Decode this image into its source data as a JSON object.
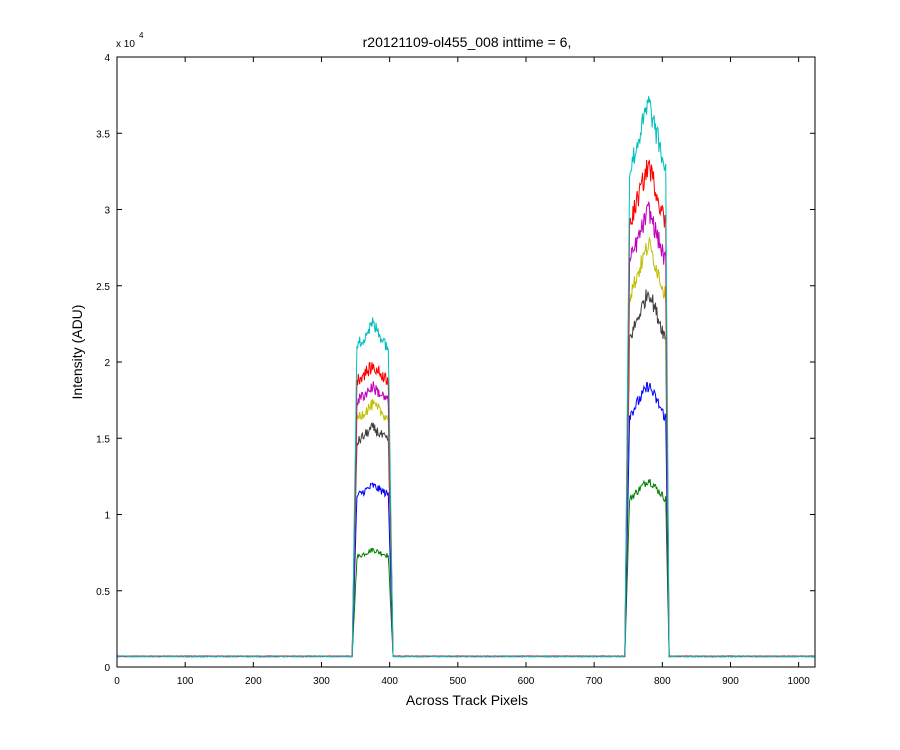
{
  "chart_data": {
    "type": "line",
    "title": "r20121109-ol455_008 inttime = 6,",
    "xlabel": "Across Track Pixels",
    "ylabel": "Intensity (ADU)",
    "y_exponent": {
      "base": "x 10",
      "power": "4"
    },
    "xlim": [
      0,
      1024
    ],
    "ylim": [
      0,
      40000
    ],
    "xticks": [
      0,
      100,
      200,
      300,
      400,
      500,
      600,
      700,
      800,
      900,
      1000
    ],
    "yticks": [
      0,
      5000,
      10000,
      15000,
      20000,
      25000,
      30000,
      35000,
      40000
    ],
    "xtick_labels": [
      "0",
      "100",
      "200",
      "300",
      "400",
      "500",
      "600",
      "700",
      "800",
      "900",
      "1000"
    ],
    "ytick_labels": [
      "0",
      "0.5",
      "1",
      "1.5",
      "2",
      "2.5",
      "3",
      "3.5",
      "4"
    ],
    "grid": false,
    "legend": "none",
    "baseline": 700,
    "peaks": [
      {
        "x_start": 345,
        "x_end": 405
      },
      {
        "x_start": 745,
        "x_end": 810
      }
    ],
    "series": [
      {
        "color": "#008000",
        "values": [
          {
            "x": 0,
            "y": 700
          },
          {
            "x": 345,
            "y": 700
          },
          {
            "x": 352,
            "y": 7200
          },
          {
            "x": 375,
            "y": 7700
          },
          {
            "x": 398,
            "y": 7300
          },
          {
            "x": 405,
            "y": 700
          },
          {
            "x": 745,
            "y": 700
          },
          {
            "x": 752,
            "y": 11000
          },
          {
            "x": 780,
            "y": 12300
          },
          {
            "x": 805,
            "y": 11000
          },
          {
            "x": 810,
            "y": 700
          },
          {
            "x": 1024,
            "y": 700
          }
        ]
      },
      {
        "color": "#0000ff",
        "values": [
          {
            "x": 0,
            "y": 700
          },
          {
            "x": 345,
            "y": 700
          },
          {
            "x": 352,
            "y": 11200
          },
          {
            "x": 375,
            "y": 11900
          },
          {
            "x": 398,
            "y": 11300
          },
          {
            "x": 405,
            "y": 700
          },
          {
            "x": 745,
            "y": 700
          },
          {
            "x": 752,
            "y": 16500
          },
          {
            "x": 780,
            "y": 18500
          },
          {
            "x": 805,
            "y": 16300
          },
          {
            "x": 810,
            "y": 700
          },
          {
            "x": 1024,
            "y": 700
          }
        ]
      },
      {
        "color": "#404040",
        "values": [
          {
            "x": 0,
            "y": 700
          },
          {
            "x": 345,
            "y": 700
          },
          {
            "x": 352,
            "y": 14700
          },
          {
            "x": 375,
            "y": 15700
          },
          {
            "x": 398,
            "y": 14800
          },
          {
            "x": 405,
            "y": 700
          },
          {
            "x": 745,
            "y": 700
          },
          {
            "x": 752,
            "y": 21500
          },
          {
            "x": 780,
            "y": 24700
          },
          {
            "x": 805,
            "y": 21500
          },
          {
            "x": 810,
            "y": 700
          },
          {
            "x": 1024,
            "y": 700
          }
        ]
      },
      {
        "color": "#bfbf00",
        "values": [
          {
            "x": 0,
            "y": 700
          },
          {
            "x": 345,
            "y": 700
          },
          {
            "x": 352,
            "y": 16300
          },
          {
            "x": 375,
            "y": 17200
          },
          {
            "x": 398,
            "y": 16300
          },
          {
            "x": 405,
            "y": 700
          },
          {
            "x": 745,
            "y": 700
          },
          {
            "x": 752,
            "y": 24300
          },
          {
            "x": 780,
            "y": 27800
          },
          {
            "x": 805,
            "y": 24300
          },
          {
            "x": 810,
            "y": 700
          },
          {
            "x": 1024,
            "y": 700
          }
        ]
      },
      {
        "color": "#bf00bf",
        "values": [
          {
            "x": 0,
            "y": 700
          },
          {
            "x": 345,
            "y": 700
          },
          {
            "x": 352,
            "y": 17400
          },
          {
            "x": 375,
            "y": 18400
          },
          {
            "x": 398,
            "y": 17400
          },
          {
            "x": 405,
            "y": 700
          },
          {
            "x": 745,
            "y": 700
          },
          {
            "x": 752,
            "y": 26500
          },
          {
            "x": 780,
            "y": 30000
          },
          {
            "x": 805,
            "y": 26500
          },
          {
            "x": 810,
            "y": 700
          },
          {
            "x": 1024,
            "y": 700
          }
        ]
      },
      {
        "color": "#ff0000",
        "values": [
          {
            "x": 0,
            "y": 700
          },
          {
            "x": 345,
            "y": 700
          },
          {
            "x": 352,
            "y": 18800
          },
          {
            "x": 375,
            "y": 19700
          },
          {
            "x": 398,
            "y": 18800
          },
          {
            "x": 405,
            "y": 700
          },
          {
            "x": 745,
            "y": 700
          },
          {
            "x": 752,
            "y": 29000
          },
          {
            "x": 780,
            "y": 33000
          },
          {
            "x": 805,
            "y": 29000
          },
          {
            "x": 810,
            "y": 700
          },
          {
            "x": 1024,
            "y": 700
          }
        ]
      },
      {
        "color": "#00bfbf",
        "values": [
          {
            "x": 0,
            "y": 700
          },
          {
            "x": 345,
            "y": 700
          },
          {
            "x": 352,
            "y": 21000
          },
          {
            "x": 375,
            "y": 22500
          },
          {
            "x": 398,
            "y": 21000
          },
          {
            "x": 405,
            "y": 700
          },
          {
            "x": 745,
            "y": 700
          },
          {
            "x": 752,
            "y": 32500
          },
          {
            "x": 780,
            "y": 37000
          },
          {
            "x": 805,
            "y": 32500
          },
          {
            "x": 810,
            "y": 700
          },
          {
            "x": 1024,
            "y": 700
          }
        ]
      }
    ]
  }
}
